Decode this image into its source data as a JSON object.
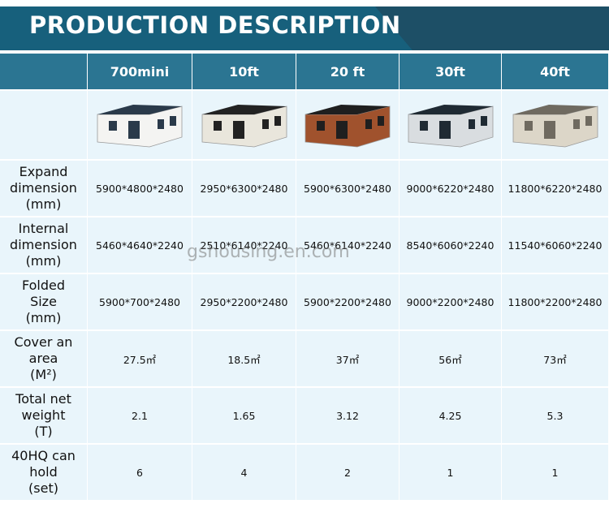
{
  "header": {
    "title": "PRODUCTION DESCRIPTION"
  },
  "table": {
    "columns": [
      "700mini",
      "10ft",
      "20 ft",
      "30ft",
      "40ft"
    ],
    "rows": [
      {
        "label": [
          "Expand",
          "dimension",
          "(mm)"
        ],
        "cells": [
          "5900*4800*2480",
          "2950*6300*2480",
          "5900*6300*2480",
          "9000*6220*2480",
          "11800*6220*2480"
        ]
      },
      {
        "label": [
          "Internal",
          "dimension",
          "(mm)"
        ],
        "cells": [
          "5460*4640*2240",
          "2510*6140*2240",
          "5460*6140*2240",
          "8540*6060*2240",
          "11540*6060*2240"
        ]
      },
      {
        "label": [
          "Folded",
          "Size",
          "(mm)"
        ],
        "cells": [
          "5900*700*2480",
          "2950*2200*2480",
          "5900*2200*2480",
          "9000*2200*2480",
          "11800*2200*2480"
        ]
      },
      {
        "label": [
          "Cover an",
          "area",
          "(M²)"
        ],
        "cells": [
          "27.5㎡",
          "18.5㎡",
          "37㎡",
          "56㎡",
          "73㎡"
        ]
      },
      {
        "label": [
          "Total net",
          "weight",
          "(T)"
        ],
        "cells": [
          "2.1",
          "1.65",
          "3.12",
          "4.25",
          "5.3"
        ]
      },
      {
        "label": [
          "40HQ can",
          "hold",
          "(set)"
        ],
        "cells": [
          "6",
          "4",
          "2",
          "1",
          "1"
        ]
      }
    ]
  },
  "watermark": "gshousing.en.com"
}
